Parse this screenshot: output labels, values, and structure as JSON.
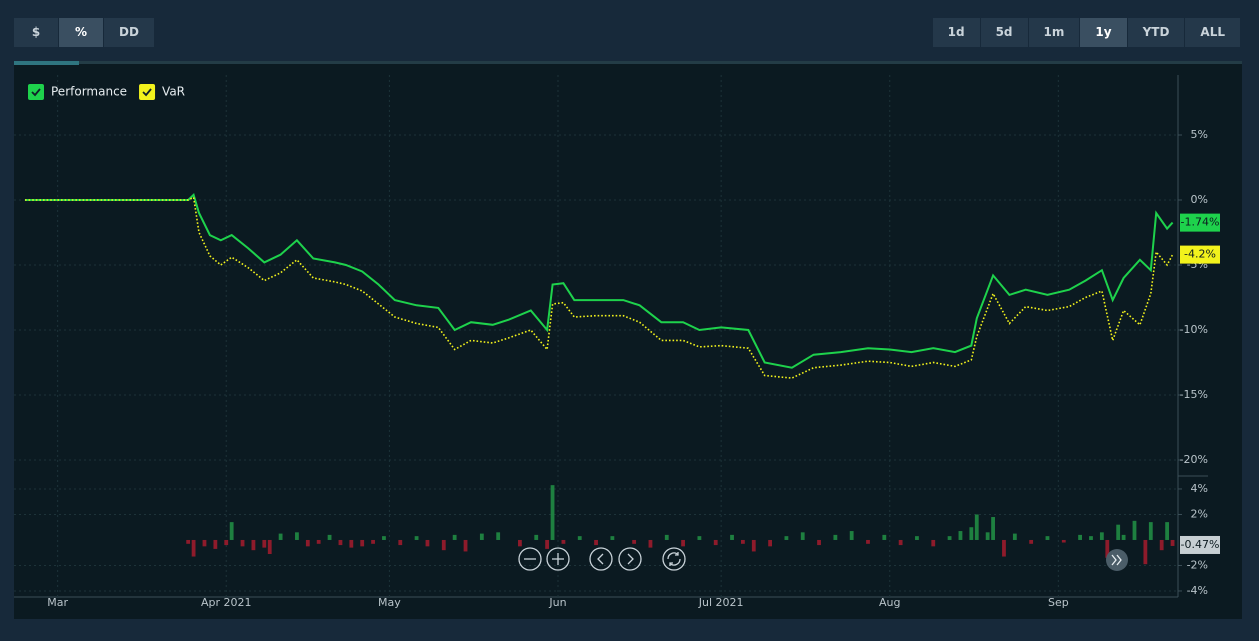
{
  "toolbar": {
    "left": [
      "$",
      "%",
      "DD"
    ],
    "left_active": 1,
    "right": [
      "1d",
      "5d",
      "1m",
      "1y",
      "YTD",
      "ALL"
    ],
    "right_active": 3
  },
  "chart_data": [
    {
      "type": "line",
      "x": [
        54,
        84,
        85,
        86,
        88,
        90,
        92,
        95,
        98,
        101,
        104,
        107,
        111,
        113,
        116,
        119,
        122,
        126,
        130,
        133,
        136,
        140,
        143,
        147,
        150,
        151,
        153,
        155,
        159,
        164,
        167,
        171,
        175,
        178,
        182,
        187,
        190,
        195,
        199,
        204,
        209,
        213,
        217,
        221,
        225,
        228,
        229,
        232,
        235,
        238,
        242,
        246,
        249,
        252,
        254,
        256,
        259,
        261,
        262,
        264,
        265
      ],
      "xlim": [
        54,
        266
      ],
      "xticks": [
        {
          "value": 60,
          "label": "Mar"
        },
        {
          "value": 91,
          "label": "Apr 2021"
        },
        {
          "value": 121,
          "label": "May"
        },
        {
          "value": 152,
          "label": "Jun"
        },
        {
          "value": 182,
          "label": "Jul 2021"
        },
        {
          "value": 213,
          "label": "Aug"
        },
        {
          "value": 244,
          "label": "Sep"
        }
      ],
      "ylim": [
        -21,
        9
      ],
      "yticks": [
        {
          "value": 5,
          "label": "5%"
        },
        {
          "value": 0,
          "label": "0%"
        },
        {
          "value": -5,
          "label": "-5%"
        },
        {
          "value": -10,
          "label": "-10%"
        },
        {
          "value": -15,
          "label": "-15%"
        },
        {
          "value": -20,
          "label": "-20%"
        }
      ],
      "grid": true,
      "legend": "top-left",
      "series": [
        {
          "name": "Performance",
          "color": "#1ed24c",
          "dash": "solid",
          "values": [
            0,
            0,
            0.4,
            -1,
            -2.7,
            -3.1,
            -2.7,
            -3.7,
            -4.8,
            -4.2,
            -3.1,
            -4.5,
            -4.8,
            -5,
            -5.5,
            -6.5,
            -7.7,
            -8.1,
            -8.3,
            -10,
            -9.4,
            -9.6,
            -9.2,
            -8.5,
            -10,
            -6.5,
            -6.4,
            -7.7,
            -7.7,
            -7.7,
            -8.1,
            -9.4,
            -9.4,
            -10,
            -9.8,
            -10,
            -12.5,
            -12.9,
            -11.9,
            -11.7,
            -11.4,
            -11.5,
            -11.7,
            -11.4,
            -11.7,
            -11.2,
            -9.1,
            -5.8,
            -7.3,
            -6.9,
            -7.3,
            -6.9,
            -6.2,
            -5.4,
            -7.7,
            -6,
            -4.6,
            -5.4,
            -1,
            -2.2,
            -1.74
          ],
          "value_labels": [
            null,
            null,
            null,
            null,
            null,
            null,
            null,
            null,
            null,
            null,
            null,
            null,
            null,
            null,
            null,
            null,
            null,
            null,
            null,
            null,
            null,
            null,
            null,
            null,
            null,
            null,
            null,
            null,
            null,
            null,
            null,
            null,
            null,
            null,
            null,
            null,
            null,
            null,
            null,
            null,
            null,
            null,
            null,
            null,
            null,
            null,
            null,
            null,
            null,
            null,
            null,
            null,
            null,
            null,
            null,
            null,
            null,
            null,
            null,
            null,
            "-1.74%"
          ]
        },
        {
          "name": "VaR",
          "color": "#f2f21c",
          "dash": "dotted",
          "values": [
            0,
            0,
            0.2,
            -2.5,
            -4.3,
            -5,
            -4.4,
            -5.2,
            -6.2,
            -5.6,
            -4.6,
            -6,
            -6.3,
            -6.5,
            -7,
            -8,
            -9,
            -9.5,
            -9.8,
            -11.5,
            -10.8,
            -11,
            -10.6,
            -10,
            -11.5,
            -8,
            -7.9,
            -9,
            -8.9,
            -8.9,
            -9.4,
            -10.8,
            -10.8,
            -11.3,
            -11.2,
            -11.4,
            -13.5,
            -13.7,
            -12.9,
            -12.7,
            -12.4,
            -12.5,
            -12.8,
            -12.5,
            -12.8,
            -12.3,
            -10.5,
            -7.2,
            -9.5,
            -8.2,
            -8.5,
            -8.2,
            -7.5,
            -7,
            -10.8,
            -8.5,
            -9.6,
            -7.2,
            -4,
            -5,
            -4.2
          ],
          "value_labels": [
            null,
            null,
            null,
            null,
            null,
            null,
            null,
            null,
            null,
            null,
            null,
            null,
            null,
            null,
            null,
            null,
            null,
            null,
            null,
            null,
            null,
            null,
            null,
            null,
            null,
            null,
            null,
            null,
            null,
            null,
            null,
            null,
            null,
            null,
            null,
            null,
            null,
            null,
            null,
            null,
            null,
            null,
            null,
            null,
            null,
            null,
            null,
            null,
            null,
            null,
            null,
            null,
            null,
            null,
            null,
            null,
            null,
            null,
            null,
            null,
            "-4.2%"
          ]
        }
      ]
    },
    {
      "type": "bar",
      "x": [
        84,
        85,
        87,
        89,
        91,
        92,
        94,
        96,
        98,
        99,
        101,
        104,
        106,
        108,
        110,
        112,
        114,
        116,
        118,
        120,
        123,
        126,
        128,
        131,
        133,
        135,
        138,
        141,
        145,
        148,
        150,
        151,
        153,
        156,
        159,
        162,
        166,
        169,
        172,
        175,
        178,
        181,
        184,
        186,
        188,
        191,
        194,
        197,
        200,
        203,
        206,
        209,
        212,
        215,
        218,
        221,
        224,
        226,
        228,
        229,
        231,
        232,
        234,
        236,
        239,
        242,
        245,
        248,
        250,
        252,
        253,
        255,
        256,
        258,
        260,
        261,
        263,
        264,
        265
      ],
      "xlim": [
        54,
        266
      ],
      "ylim": [
        -4.5,
        4.5
      ],
      "yticks": [
        {
          "value": 4,
          "label": "4%"
        },
        {
          "value": 2,
          "label": "2%"
        },
        {
          "value": -2,
          "label": "-2%"
        },
        {
          "value": -4,
          "label": "-4%"
        }
      ],
      "color": "#1e8040",
      "negative_color": "#8e1b2b",
      "values": [
        -0.3,
        -1.3,
        -0.5,
        -0.7,
        -0.4,
        1.4,
        -0.5,
        -0.8,
        -0.6,
        -1.1,
        0.5,
        0.6,
        -0.5,
        -0.3,
        0.4,
        -0.4,
        -0.6,
        -0.5,
        -0.3,
        0.3,
        -0.4,
        0.3,
        -0.5,
        -0.8,
        0.4,
        -0.9,
        0.5,
        0.6,
        -0.5,
        0.4,
        -0.7,
        4.3,
        -0.3,
        0.3,
        -0.4,
        0.3,
        -0.3,
        -0.6,
        0.4,
        -0.5,
        0.3,
        -0.4,
        0.4,
        -0.3,
        -0.9,
        -0.5,
        0.3,
        0.6,
        -0.4,
        0.4,
        0.7,
        -0.3,
        0.4,
        -0.4,
        0.3,
        -0.5,
        0.3,
        0.7,
        1.0,
        2.0,
        0.6,
        1.8,
        -1.3,
        0.5,
        -0.3,
        0.3,
        -0.2,
        0.4,
        0.3,
        0.6,
        -1.4,
        1.2,
        0.4,
        1.5,
        -1.9,
        1.4,
        -0.8,
        1.4,
        -0.47
      ],
      "value_labels": [
        null,
        null,
        null,
        null,
        null,
        null,
        null,
        null,
        null,
        null,
        null,
        null,
        null,
        null,
        null,
        null,
        null,
        null,
        null,
        null,
        null,
        null,
        null,
        null,
        null,
        null,
        null,
        null,
        null,
        null,
        null,
        null,
        null,
        null,
        null,
        null,
        null,
        null,
        null,
        null,
        null,
        null,
        null,
        null,
        null,
        null,
        null,
        null,
        null,
        null,
        null,
        null,
        null,
        null,
        null,
        null,
        null,
        null,
        null,
        null,
        null,
        null,
        null,
        null,
        null,
        null,
        null,
        null,
        null,
        null,
        null,
        null,
        null,
        null,
        null,
        null,
        null,
        null,
        "-0.47%"
      ]
    }
  ]
}
